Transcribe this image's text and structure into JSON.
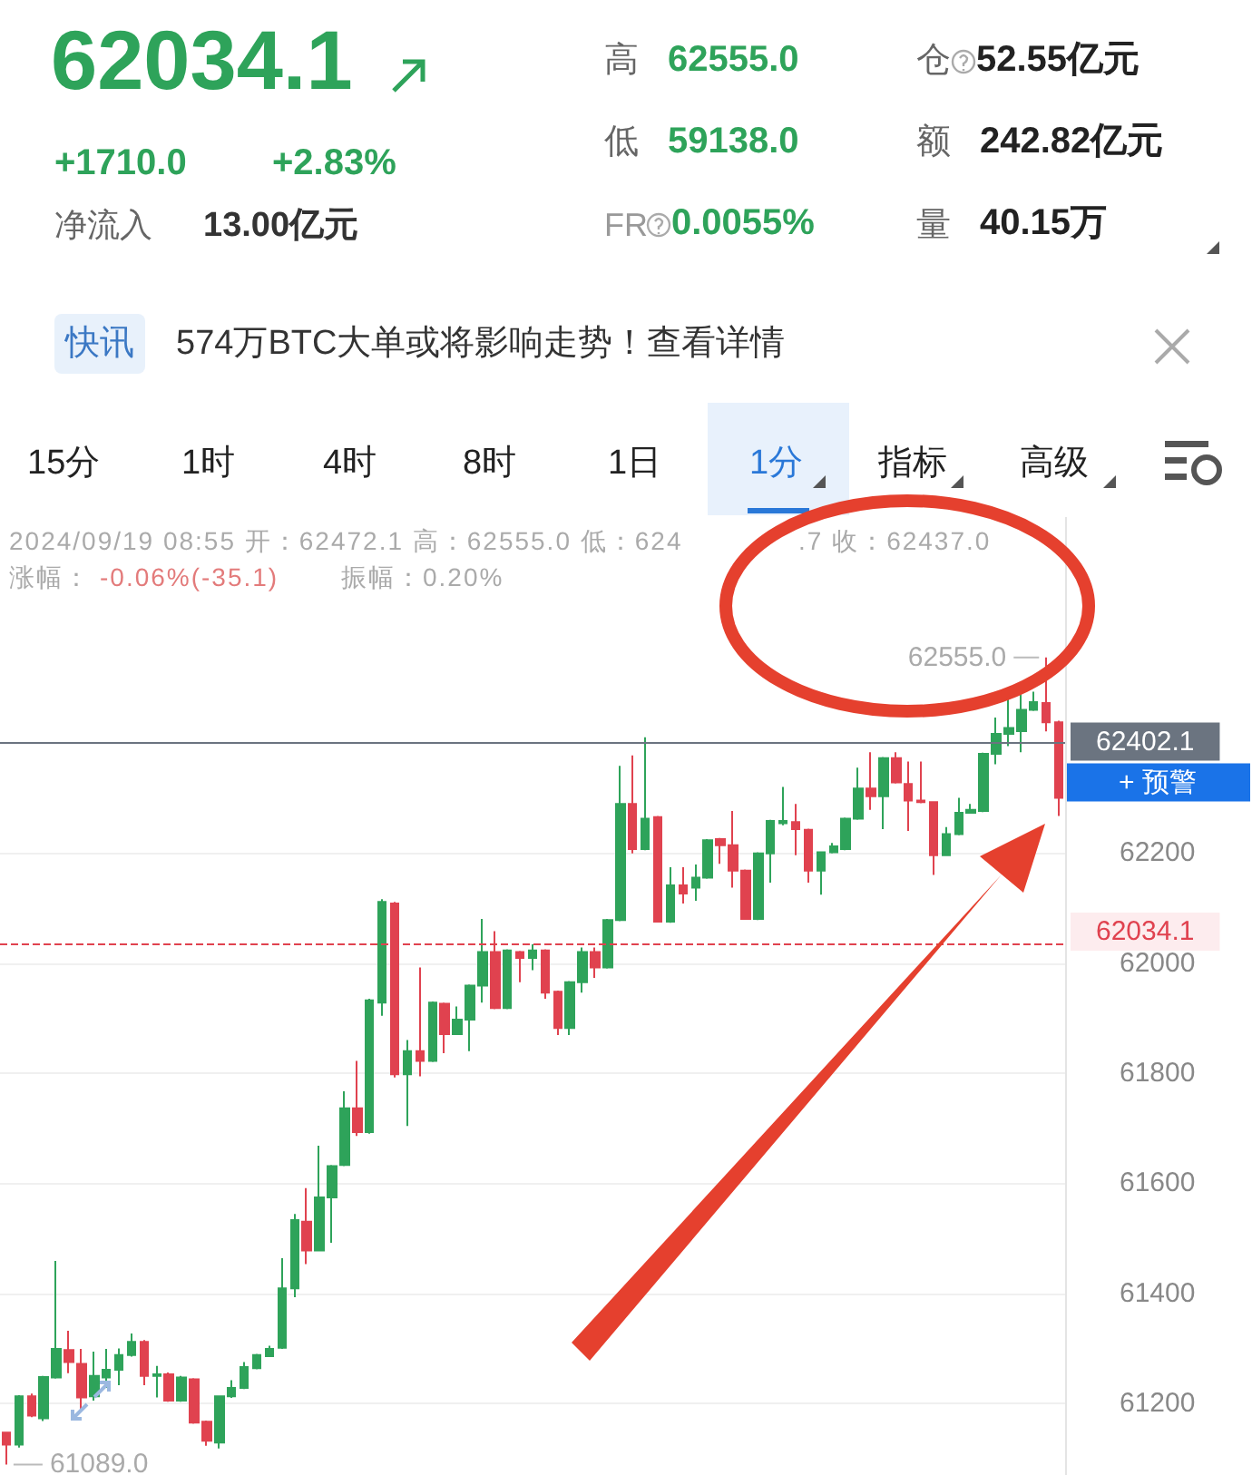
{
  "chart_data": {
    "type": "candlestick",
    "title": "62034.1",
    "categories": [
      null,
      null,
      null,
      null,
      null,
      null,
      null,
      null,
      null,
      null,
      null,
      null,
      null,
      null,
      null,
      null,
      null,
      null,
      null,
      null,
      null,
      null,
      null,
      null,
      null,
      null,
      null,
      null,
      null,
      null,
      null,
      null,
      null,
      null,
      null,
      null,
      null,
      null,
      null,
      null,
      null,
      null,
      null,
      null,
      null,
      null,
      null,
      null,
      null,
      null,
      null,
      null,
      null,
      null,
      null,
      null,
      null,
      null,
      null,
      null,
      null,
      null,
      null,
      null,
      null,
      null,
      null,
      null,
      null,
      null,
      null,
      null,
      null,
      null,
      null,
      null,
      null,
      null,
      null,
      null,
      null,
      null,
      null,
      null,
      null
    ],
    "ohlc": [
      [
        61147,
        61147,
        61089,
        61125
      ],
      [
        61125,
        61215,
        61120,
        61213
      ],
      [
        61213,
        61218,
        61175,
        61178
      ],
      [
        61173,
        61250,
        61168,
        61248
      ],
      [
        61247,
        61459,
        61245,
        61299
      ],
      [
        61297,
        61332,
        61255,
        61275
      ],
      [
        61272,
        61299,
        61189,
        61211
      ],
      [
        61213,
        61294,
        61205,
        61250
      ],
      [
        61247,
        61299,
        61228,
        61261
      ],
      [
        61261,
        61300,
        61233,
        61288
      ],
      [
        61288,
        61327,
        61285,
        61312
      ],
      [
        61312,
        61315,
        61233,
        61250
      ],
      [
        61250,
        61268,
        61211,
        61253
      ],
      [
        61253,
        61256,
        61203,
        61205
      ],
      [
        61205,
        61250,
        61203,
        61247
      ],
      [
        61244,
        61246,
        61163,
        61165
      ],
      [
        61167,
        61169,
        61123,
        61132
      ],
      [
        61129,
        61213,
        61118,
        61213
      ],
      [
        61213,
        61242,
        61210,
        61228
      ],
      [
        61228,
        61275,
        61226,
        61266
      ],
      [
        61264,
        61290,
        61262,
        61288
      ],
      [
        61286,
        61305,
        61284,
        61299
      ],
      [
        61301,
        61464,
        61299,
        61409
      ],
      [
        61409,
        61544,
        61393,
        61533
      ],
      [
        61530,
        61591,
        61453,
        61478
      ],
      [
        61478,
        61668,
        61476,
        61574
      ],
      [
        61574,
        61633,
        61492,
        61631
      ],
      [
        61633,
        61767,
        61631,
        61736
      ],
      [
        61736,
        61822,
        61686,
        61693
      ],
      [
        61693,
        61935,
        61690,
        61932
      ],
      [
        61928,
        62116,
        61904,
        62111
      ],
      [
        62108,
        62111,
        61792,
        61798
      ],
      [
        61798,
        61860,
        61704,
        61840
      ],
      [
        61840,
        61992,
        61794,
        61822
      ],
      [
        61822,
        61930,
        61820,
        61928
      ],
      [
        61926,
        61928,
        61836,
        61871
      ],
      [
        61871,
        61921,
        61869,
        61897
      ],
      [
        61897,
        61961,
        61840,
        61959
      ],
      [
        61959,
        62080,
        61928,
        62020
      ],
      [
        62020,
        62058,
        61916,
        61918
      ],
      [
        61918,
        62025,
        61916,
        62023
      ],
      [
        62020,
        62022,
        61965,
        62009
      ],
      [
        62009,
        62034,
        61987,
        62023
      ],
      [
        62023,
        62025,
        61935,
        61946
      ],
      [
        61948,
        61950,
        61869,
        61882
      ],
      [
        61882,
        61967,
        61869,
        61965
      ],
      [
        61965,
        62028,
        61946,
        62020
      ],
      [
        62020,
        62028,
        61973,
        61992
      ],
      [
        61992,
        62080,
        61990,
        62078
      ],
      [
        62078,
        62358,
        62076,
        62289
      ],
      [
        62289,
        62377,
        62199,
        62207
      ],
      [
        62207,
        62410,
        62205,
        62262
      ],
      [
        62265,
        62267,
        62075,
        62075
      ],
      [
        62075,
        62174,
        62073,
        62141
      ],
      [
        62141,
        62174,
        62108,
        62126
      ],
      [
        62137,
        62179,
        62113,
        62155
      ],
      [
        62155,
        62225,
        62153,
        62223
      ],
      [
        62225,
        62227,
        62180,
        62214
      ],
      [
        62214,
        62276,
        62137,
        62168
      ],
      [
        62168,
        62170,
        62080,
        62080
      ],
      [
        62080,
        62201,
        62078,
        62199
      ],
      [
        62199,
        62260,
        62146,
        62258
      ],
      [
        62254,
        62320,
        62250,
        62258
      ],
      [
        62256,
        62289,
        62196,
        62243
      ],
      [
        62242,
        62244,
        62146,
        62168
      ],
      [
        62168,
        62203,
        62124,
        62201
      ],
      [
        62201,
        62218,
        62199,
        62212
      ],
      [
        62207,
        62264,
        62205,
        62262
      ],
      [
        62262,
        62355,
        62260,
        62317
      ],
      [
        62317,
        62383,
        62278,
        62303
      ],
      [
        62303,
        62374,
        62243,
        62372
      ],
      [
        62372,
        62383,
        62326,
        62328
      ],
      [
        62325,
        62366,
        62240,
        62295
      ],
      [
        62295,
        62366,
        62290,
        62292
      ],
      [
        62292,
        62294,
        62160,
        62196
      ],
      [
        62196,
        62247,
        62194,
        62234
      ],
      [
        62234,
        62300,
        62232,
        62273
      ],
      [
        62273,
        62289,
        62271,
        62278
      ],
      [
        62276,
        62382,
        62274,
        62380
      ],
      [
        62380,
        62446,
        62361,
        62416
      ],
      [
        62416,
        62487,
        62394,
        62427
      ],
      [
        62421,
        62493,
        62383,
        62460
      ],
      [
        62460,
        62493,
        62458,
        62474
      ],
      [
        62472.1,
        62555.0,
        62420.7,
        62437.0
      ],
      [
        62437,
        62440,
        62267,
        62300
      ]
    ],
    "colors": [
      "#e0424f",
      "#2ea35a",
      "#e0424f",
      "#2ea35a",
      "#2ea35a",
      "#e0424f",
      "#e0424f",
      "#2ea35a",
      "#2ea35a",
      "#2ea35a",
      "#2ea35a",
      "#e0424f",
      "#2ea35a",
      "#e0424f",
      "#2ea35a",
      "#e0424f",
      "#e0424f",
      "#2ea35a",
      "#2ea35a",
      "#2ea35a",
      "#2ea35a",
      "#2ea35a",
      "#2ea35a",
      "#2ea35a",
      "#e0424f",
      "#2ea35a",
      "#2ea35a",
      "#2ea35a",
      "#e0424f",
      "#2ea35a",
      "#2ea35a",
      "#e0424f",
      "#2ea35a",
      "#e0424f",
      "#2ea35a",
      "#e0424f",
      "#2ea35a",
      "#2ea35a",
      "#2ea35a",
      "#e0424f",
      "#2ea35a",
      "#e0424f",
      "#2ea35a",
      "#e0424f",
      "#e0424f",
      "#2ea35a",
      "#2ea35a",
      "#e0424f",
      "#2ea35a",
      "#2ea35a",
      "#e0424f",
      "#2ea35a",
      "#e0424f",
      "#2ea35a",
      "#e0424f",
      "#2ea35a",
      "#2ea35a",
      "#e0424f",
      "#e0424f",
      "#e0424f",
      "#2ea35a",
      "#2ea35a",
      "#2ea35a",
      "#e0424f",
      "#e0424f",
      "#2ea35a",
      "#2ea35a",
      "#2ea35a",
      "#2ea35a",
      "#e0424f",
      "#2ea35a",
      "#e0424f",
      "#e0424f",
      "#e0424f",
      "#e0424f",
      "#2ea35a",
      "#2ea35a",
      "#2ea35a",
      "#2ea35a",
      "#2ea35a",
      "#2ea35a",
      "#2ea35a",
      "#2ea35a",
      "#e0424f",
      "#e0424f"
    ],
    "ylim": [
      61070,
      62810
    ],
    "yticks": [
      61200,
      61400,
      61600,
      61800,
      62000,
      62200
    ],
    "grid": "y",
    "tick_labels": "y",
    "ref_lines": [
      {
        "axis": "y",
        "value": 62034.1,
        "label": "62034.1",
        "color": "#e0424f",
        "line_style": "dashed"
      },
      {
        "axis": "y",
        "value": 62402.1,
        "label": "62402.1",
        "color": "#6b7480",
        "line_style": "solid"
      }
    ],
    "annotations": [
      "+1710.0",
      "+2.83%",
      "净流入",
      "13.00亿元",
      "高",
      "62555.0",
      "低",
      "59138.0",
      "FR",
      "0.0055%",
      "仓",
      "52.55亿元",
      "额",
      "242.82亿元",
      "量",
      "40.15万",
      "快讯",
      "574万BTC大单或将影响走势！查看详情",
      "15分",
      "1时",
      "4时",
      "8时",
      "1日",
      "1分",
      "指标",
      "高级",
      "2024/09/19 08:55 开：62472.1 高：62555.0 低：624",
      ".7 收：62437.0",
      "涨幅：",
      "-0.06%(-35.1)",
      "振幅：0.20%",
      "+ 预警",
      "62555.0",
      "61089.0"
    ]
  }
}
